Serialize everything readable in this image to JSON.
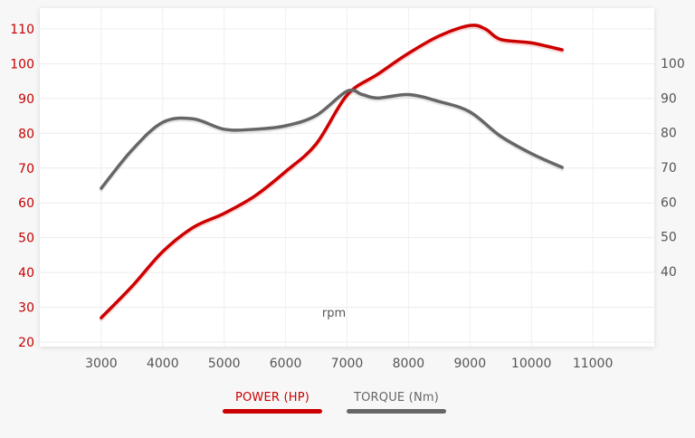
{
  "chart_data": {
    "type": "line",
    "xlabel": "rpm",
    "x_ticks": [
      3000,
      4000,
      5000,
      6000,
      7000,
      8000,
      9000,
      10000,
      11000
    ],
    "xlim": [
      2000,
      12000
    ],
    "y_left": {
      "ticks": [
        20,
        30,
        40,
        50,
        60,
        70,
        80,
        90,
        100,
        110
      ],
      "ylim": [
        20,
        115
      ],
      "color": "#c40000"
    },
    "y_right": {
      "ticks": [
        40,
        50,
        60,
        70,
        80,
        90,
        100
      ],
      "ylim": [
        20,
        115
      ],
      "color": "#555555"
    },
    "grid": true,
    "legend_position": "bottom",
    "series": [
      {
        "name": "POWER (HP)",
        "axis": "left",
        "color": "#cc0000",
        "points": [
          [
            3000,
            27
          ],
          [
            3500,
            36
          ],
          [
            4000,
            46
          ],
          [
            4500,
            53
          ],
          [
            5000,
            57
          ],
          [
            5500,
            62
          ],
          [
            6000,
            69
          ],
          [
            6500,
            77
          ],
          [
            7000,
            91
          ],
          [
            7500,
            97
          ],
          [
            8000,
            103
          ],
          [
            8500,
            108
          ],
          [
            9000,
            111
          ],
          [
            9250,
            110
          ],
          [
            9500,
            107
          ],
          [
            10000,
            106
          ],
          [
            10500,
            104
          ]
        ]
      },
      {
        "name": "TORQUE (Nm)",
        "axis": "right",
        "color": "#666666",
        "points": [
          [
            3000,
            64
          ],
          [
            3500,
            75
          ],
          [
            4000,
            83
          ],
          [
            4500,
            84
          ],
          [
            5000,
            81
          ],
          [
            5500,
            81
          ],
          [
            6000,
            82
          ],
          [
            6500,
            85
          ],
          [
            7000,
            92
          ],
          [
            7250,
            91
          ],
          [
            7500,
            90
          ],
          [
            8000,
            91
          ],
          [
            8500,
            89
          ],
          [
            9000,
            86
          ],
          [
            9500,
            79
          ],
          [
            10000,
            74
          ],
          [
            10500,
            70
          ]
        ]
      }
    ]
  }
}
